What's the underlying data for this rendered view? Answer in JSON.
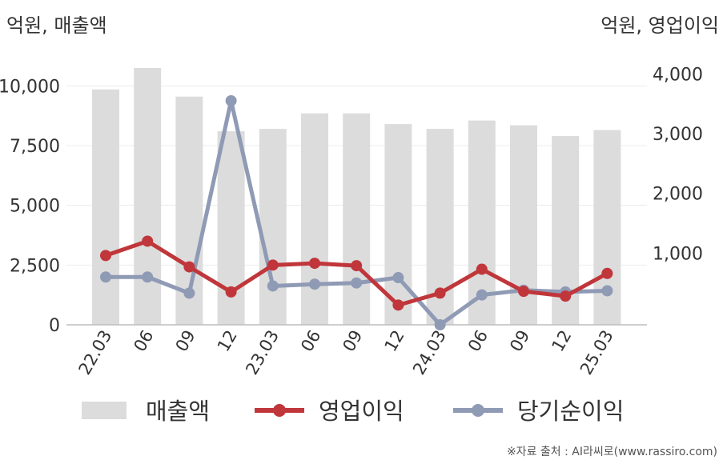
{
  "units": {
    "left": "억원, 매출액",
    "right": "억원, 영업이익"
  },
  "source": "※자료 출처 : AI라씨로(www.rassiro.com)",
  "chart_data": {
    "type": "bar+line",
    "categories": [
      "22.03",
      "06",
      "09",
      "12",
      "23.03",
      "06",
      "09",
      "12",
      "24.03",
      "06",
      "09",
      "12",
      "25.03"
    ],
    "left_axis": {
      "ticks": [
        "0",
        "2,500",
        "5,000",
        "7,500",
        "10,000"
      ],
      "range": [
        0,
        11250
      ]
    },
    "right_axis": {
      "ticks": [
        "1,000",
        "2,000",
        "3,000",
        "4,000"
      ],
      "range": [
        -200,
        4300
      ]
    },
    "series": [
      {
        "name": "매출액",
        "kind": "bar",
        "axis": "left",
        "color": "#dcdcdc",
        "values": [
          9850,
          10750,
          9550,
          8100,
          8200,
          8850,
          8850,
          8400,
          8200,
          8550,
          8350,
          7900,
          8150
        ]
      },
      {
        "name": "영업이익",
        "kind": "line",
        "axis": "right",
        "color": "#c0363a",
        "values": [
          960,
          1200,
          770,
          350,
          800,
          830,
          790,
          130,
          330,
          730,
          360,
          280,
          660
        ]
      },
      {
        "name": "당기순이익",
        "kind": "line",
        "axis": "right",
        "color": "#8f9ab5",
        "values": [
          600,
          600,
          330,
          3550,
          450,
          480,
          500,
          590,
          -200,
          300,
          380,
          350,
          370
        ]
      }
    ],
    "grid": true,
    "legend_position": "bottom"
  }
}
